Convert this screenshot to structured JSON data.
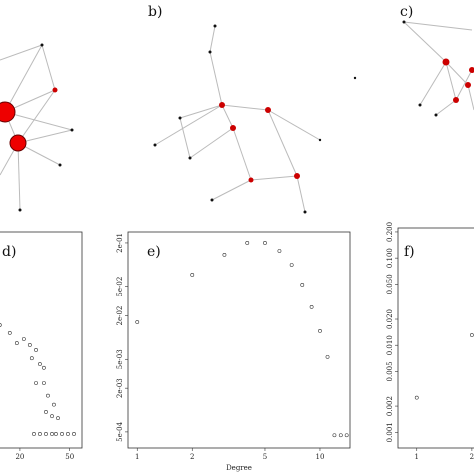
{
  "network_panels": {
    "labels": [
      "b)",
      "c)"
    ]
  },
  "chart_data": [
    {
      "type": "scatter",
      "panel_label": "d)",
      "log_x": true,
      "log_y": true,
      "x": [
        13.8,
        16.6,
        18.9,
        21.5,
        24,
        26.9,
        24.9,
        28.9,
        31.1,
        26.9,
        31.1,
        33.5,
        37.4,
        32.3,
        36.1,
        40.3,
        25.9,
        28.9,
        32.3,
        36.1,
        38.8,
        43.4,
        48.4,
        54.1
      ],
      "values": [
        0.0153,
        0.0119,
        0.0086,
        0.0098,
        0.0081,
        0.0069,
        0.0053,
        0.0044,
        0.0039,
        0.0024,
        0.0024,
        0.0016,
        0.0012,
        0.00095,
        0.00083,
        0.00078,
        0.00047,
        0.00047,
        0.00047,
        0.00047,
        0.00047,
        0.00047,
        0.00047,
        0.00047
      ],
      "xlim": [
        2.2,
        62.7
      ],
      "xticks": [
        20,
        50
      ],
      "ylim": [
        0.0003,
        0.3
      ]
    },
    {
      "type": "scatter",
      "panel_label": "e)",
      "log_x": true,
      "log_y": true,
      "x_label": "Degree",
      "x": [
        1,
        2,
        3,
        4,
        5,
        6,
        7,
        8,
        9,
        10,
        11,
        12,
        13,
        14
      ],
      "values": [
        0.0163,
        0.0725,
        0.137,
        0.2,
        0.2,
        0.155,
        0.0995,
        0.0528,
        0.0263,
        0.0123,
        0.0054,
        0.00045,
        0.00045,
        0.00045
      ],
      "xlim": [
        0.89,
        14.6
      ],
      "xticks": [
        1,
        2,
        5,
        10
      ],
      "ylim": [
        0.0003,
        0.283
      ],
      "yticks": [
        {
          "value": 0.2,
          "label": "2e-01"
        },
        {
          "value": 0.05,
          "label": "5e-02"
        },
        {
          "value": 0.02,
          "label": "2e-02"
        },
        {
          "value": 0.005,
          "label": "5e-03"
        },
        {
          "value": 0.002,
          "label": "2e-03"
        },
        {
          "value": 0.0005,
          "label": "5e-04"
        }
      ]
    },
    {
      "type": "scatter",
      "panel_label": "f)",
      "log_x": true,
      "log_y": true,
      "x": [
        1,
        2
      ],
      "values": [
        0.0025,
        0.0131
      ],
      "xlim": [
        0.79,
        14.6
      ],
      "xticks": [
        1,
        2
      ],
      "ylim": [
        0.00066,
        0.222
      ],
      "yticks": [
        {
          "value": 0.2,
          "label": "0.200"
        },
        {
          "value": 0.1,
          "label": "0.100"
        },
        {
          "value": 0.05,
          "label": "0.050"
        },
        {
          "value": 0.02,
          "label": "0.020"
        },
        {
          "value": 0.01,
          "label": "0.010"
        },
        {
          "value": 0.005,
          "label": "0.005"
        },
        {
          "value": 0.002,
          "label": "0.002"
        },
        {
          "value": 0.001,
          "label": "0.001"
        }
      ]
    }
  ]
}
